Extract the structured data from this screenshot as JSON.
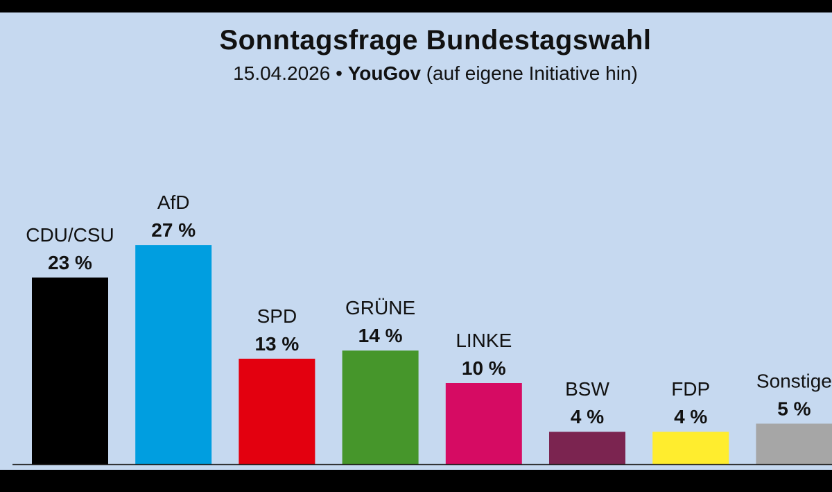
{
  "chart_data": {
    "type": "bar",
    "title": "Sonntagsfrage Bundestagswahl",
    "subtitle": {
      "date": "15.04.2026",
      "separator": "•",
      "source": "YouGov",
      "note": "(auf eigene Initiative hin)"
    },
    "xlabel": "",
    "ylabel": "",
    "ylim": [
      0,
      27
    ],
    "unit": "%",
    "categories": [
      "CDU/CSU",
      "AfD",
      "SPD",
      "GRÜNE",
      "LINKE",
      "BSW",
      "FDP",
      "Sonstige"
    ],
    "values": [
      23,
      27,
      13,
      14,
      10,
      4,
      4,
      5
    ],
    "value_labels": [
      "23 %",
      "27 %",
      "13 %",
      "14 %",
      "10 %",
      "4 %",
      "4 %",
      "5 %"
    ],
    "colors": [
      "#000000",
      "#009ee0",
      "#e3000f",
      "#46962b",
      "#d60b63",
      "#7b2450",
      "#ffed2e",
      "#a6a6a6"
    ]
  }
}
